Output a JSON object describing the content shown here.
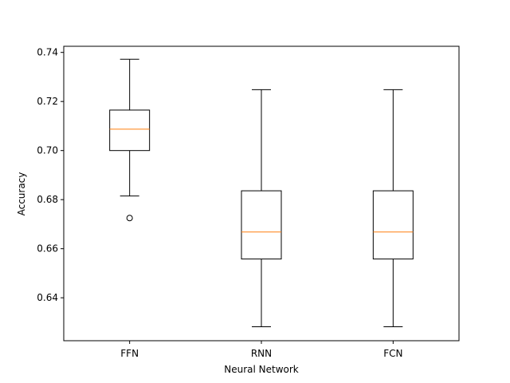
{
  "chart_data": {
    "type": "box",
    "xlabel": "Neural Network",
    "ylabel": "Accuracy",
    "ylim": [
      0.6225,
      0.7425
    ],
    "yticks": [
      0.64,
      0.66,
      0.68,
      0.7,
      0.72,
      0.74
    ],
    "ytick_labels": [
      "0.64",
      "0.66",
      "0.68",
      "0.70",
      "0.72",
      "0.74"
    ],
    "grid": false,
    "categories": [
      "FFN",
      "RNN",
      "FCN"
    ],
    "boxes": [
      {
        "category": "FFN",
        "whisker_low": 0.6815,
        "q1": 0.7,
        "median": 0.7087,
        "q3": 0.7165,
        "whisker_high": 0.7372,
        "outliers": [
          0.6725
        ]
      },
      {
        "category": "RNN",
        "whisker_low": 0.6282,
        "q1": 0.6558,
        "median": 0.6668,
        "q3": 0.6836,
        "whisker_high": 0.7248,
        "outliers": []
      },
      {
        "category": "FCN",
        "whisker_low": 0.6282,
        "q1": 0.6558,
        "median": 0.6668,
        "q3": 0.6836,
        "whisker_high": 0.7248,
        "outliers": []
      }
    ],
    "colors": {
      "box": "#000000",
      "median": "#ff7f0e",
      "outlier": "#000000"
    }
  }
}
